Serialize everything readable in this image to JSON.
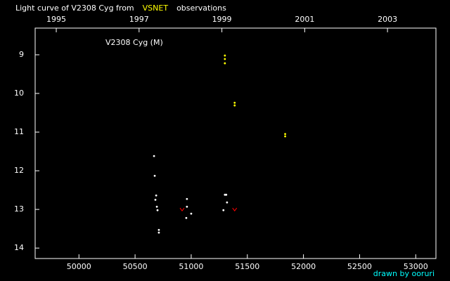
{
  "chart_data": {
    "type": "scatter",
    "title_parts": [
      {
        "text": "Light curve of V2308 Cyg from",
        "color": "#ffffff"
      },
      {
        "text": "VSNET",
        "color": "#ffff00"
      },
      {
        "text": "observations",
        "color": "#ffffff"
      }
    ],
    "annotation": "V2308 Cyg (M)",
    "credit": "drawn by ooruri",
    "credit_color": "#00ffff",
    "xlim": [
      49610,
      53180
    ],
    "xticks": [
      50000,
      50500,
      51000,
      51500,
      52000,
      52500,
      53000
    ],
    "x2lim": [
      1994.49,
      2004.17
    ],
    "x2ticks": [
      1995,
      1997,
      1999,
      2001,
      2003
    ],
    "ylim": [
      8.31,
      14.27
    ],
    "yticks": [
      9,
      10,
      11,
      12,
      13,
      14
    ],
    "y_inverted": true,
    "series": [
      {
        "color": "#ffff00",
        "marker": "dot",
        "x": [
          51300,
          51300,
          51300,
          51387,
          51387,
          51837,
          51837
        ],
        "values": [
          9.02,
          9.11,
          9.22,
          10.24,
          10.31,
          11.05,
          11.11
        ]
      },
      {
        "color": "#ffffff",
        "marker": "dot",
        "x": [
          50669,
          50675,
          50688,
          50681,
          50694,
          50700,
          50712,
          50712,
          50962,
          50962,
          50956,
          51000,
          51300,
          51312,
          51319,
          51287
        ],
        "values": [
          11.62,
          12.13,
          12.64,
          12.75,
          12.93,
          13.02,
          13.53,
          13.6,
          12.73,
          12.93,
          13.22,
          13.11,
          12.62,
          12.62,
          12.82,
          13.02
        ]
      },
      {
        "color": "#ff0000",
        "marker": "fainter",
        "x": [
          50919,
          51387
        ],
        "values": [
          13.0,
          13.0
        ]
      }
    ]
  }
}
